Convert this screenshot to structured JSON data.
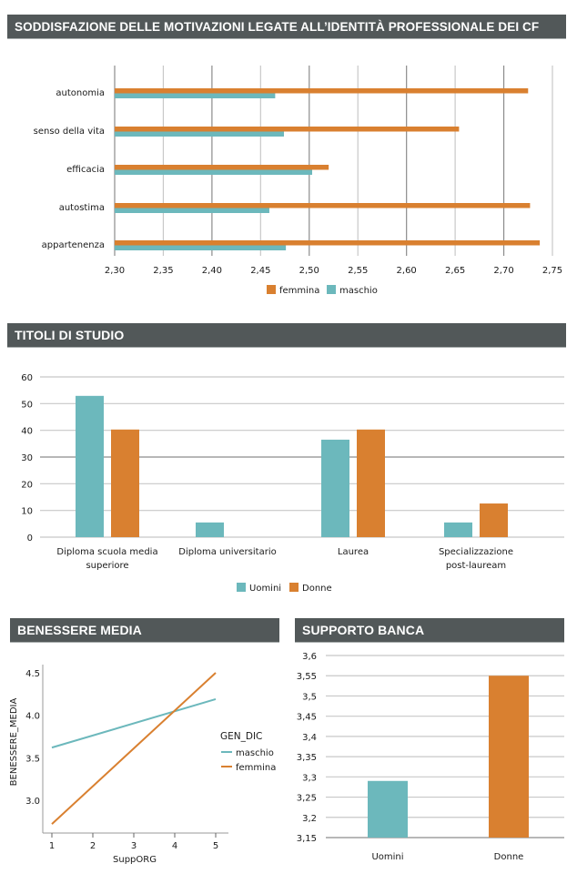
{
  "colors": {
    "orange": "#d98030",
    "teal": "#6cb8bc",
    "header_bg": "#525859",
    "grid_dark": "#8c8c8c",
    "grid_light": "#c8c8c8"
  },
  "headers": {
    "motivazioni": "Soddisfazione delle motivazioni legate all’identità professionale dei CF",
    "titoli": "Titoli di studio",
    "benessere": "Benessere media",
    "supporto": "Supporto banca"
  },
  "chart_data": [
    {
      "id": "motivazioni",
      "type": "bar",
      "orientation": "horizontal",
      "title": "Soddisfazione delle motivazioni legate all’identità professionale dei CF",
      "categories": [
        "autonomia",
        "senso della vita",
        "efficacia",
        "autostima",
        "appartenenza"
      ],
      "series": [
        {
          "name": "femmina",
          "color": "#d98030",
          "values": [
            2.725,
            2.654,
            2.52,
            2.727,
            2.737
          ]
        },
        {
          "name": "maschio",
          "color": "#6cb8bc",
          "values": [
            2.465,
            2.474,
            2.503,
            2.459,
            2.476
          ]
        }
      ],
      "xlim": [
        2.3,
        2.75
      ],
      "xticks": [
        "2,30",
        "2,35",
        "2,40",
        "2,45",
        "2,50",
        "2,55",
        "2,60",
        "2,65",
        "2,70",
        "2,75"
      ],
      "xtick_values": [
        2.3,
        2.35,
        2.4,
        2.45,
        2.5,
        2.55,
        2.6,
        2.65,
        2.7,
        2.75
      ],
      "grid": true,
      "legend": "bottom-center"
    },
    {
      "id": "titoli",
      "type": "bar",
      "title": "Titoli di studio",
      "categories": [
        [
          "Diploma scuola media",
          "superiore"
        ],
        [
          "Diploma universitario"
        ],
        [
          "Laurea"
        ],
        [
          "Specializzazione",
          "post-lauream"
        ]
      ],
      "series": [
        {
          "name": "Uomini",
          "color": "#6cb8bc",
          "values": [
            52.9,
            5.5,
            36.5,
            5.5
          ]
        },
        {
          "name": "Donne",
          "color": "#d98030",
          "values": [
            40.3,
            0,
            40.3,
            12.6
          ]
        }
      ],
      "ylim": [
        0,
        60
      ],
      "yticks": [
        "0",
        "10",
        "20",
        "30",
        "40",
        "50",
        "60"
      ],
      "ytick_values": [
        0,
        10,
        20,
        30,
        40,
        50,
        60
      ],
      "grid": true,
      "legend": "bottom-center"
    },
    {
      "id": "benessere",
      "type": "line",
      "title": "Benessere media",
      "xlabel": "SuppORG",
      "ylabel": "BENESSERE_MEDIA",
      "xlim": [
        1,
        5
      ],
      "ylim": [
        2.72,
        4.5
      ],
      "xticks": [
        "1",
        "2",
        "3",
        "4",
        "5"
      ],
      "xtick_values": [
        1,
        2,
        3,
        4,
        5
      ],
      "yticks": [
        "3.0",
        "3.5",
        "4.0",
        "4.5"
      ],
      "ytick_values": [
        3.0,
        3.5,
        4.0,
        4.5
      ],
      "legend_title": "GEN_DIC",
      "series": [
        {
          "name": "maschio",
          "color": "#6cb8bc",
          "x": [
            1,
            5
          ],
          "y": [
            3.62,
            4.19
          ]
        },
        {
          "name": "femmina",
          "color": "#d98030",
          "x": [
            1,
            5
          ],
          "y": [
            2.72,
            4.5
          ]
        }
      ],
      "grid": false,
      "legend": "right"
    },
    {
      "id": "supporto",
      "type": "bar",
      "title": "Supporto banca",
      "categories": [
        "Uomini",
        "Donne"
      ],
      "values": [
        3.29,
        3.55
      ],
      "colors": [
        "#6cb8bc",
        "#d98030"
      ],
      "ylim": [
        3.15,
        3.6
      ],
      "yticks": [
        "3,15",
        "3,2",
        "3,25",
        "3,3",
        "3,35",
        "3,4",
        "3,45",
        "3,5",
        "3,55",
        "3,6"
      ],
      "ytick_values": [
        3.15,
        3.2,
        3.25,
        3.3,
        3.35,
        3.4,
        3.45,
        3.5,
        3.55,
        3.6
      ],
      "grid": true,
      "legend": "none"
    }
  ]
}
